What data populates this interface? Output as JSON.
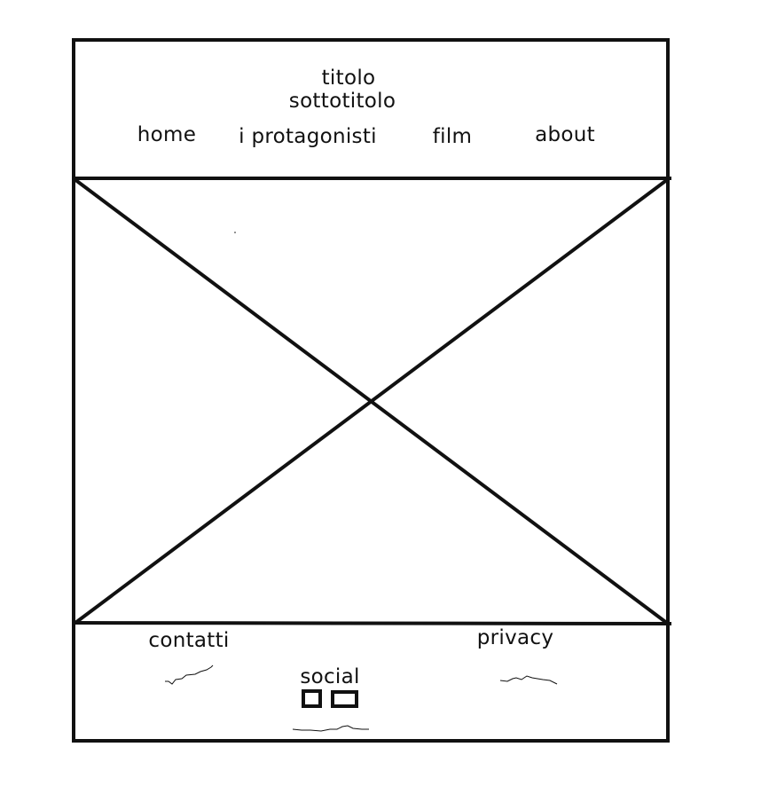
{
  "header": {
    "title": "titolo",
    "subtitle": "sottotitolo",
    "nav": {
      "home": "home",
      "protagonists": "i protagonisti",
      "film": "film",
      "about": "about"
    }
  },
  "main": {
    "image_placeholder": "image-placeholder"
  },
  "footer": {
    "contacts": "contatti",
    "privacy": "privacy",
    "social": "social",
    "social_icons": [
      "social-icon-1",
      "social-icon-2"
    ]
  },
  "colors": {
    "ink": "#111111",
    "background": "#ffffff"
  }
}
